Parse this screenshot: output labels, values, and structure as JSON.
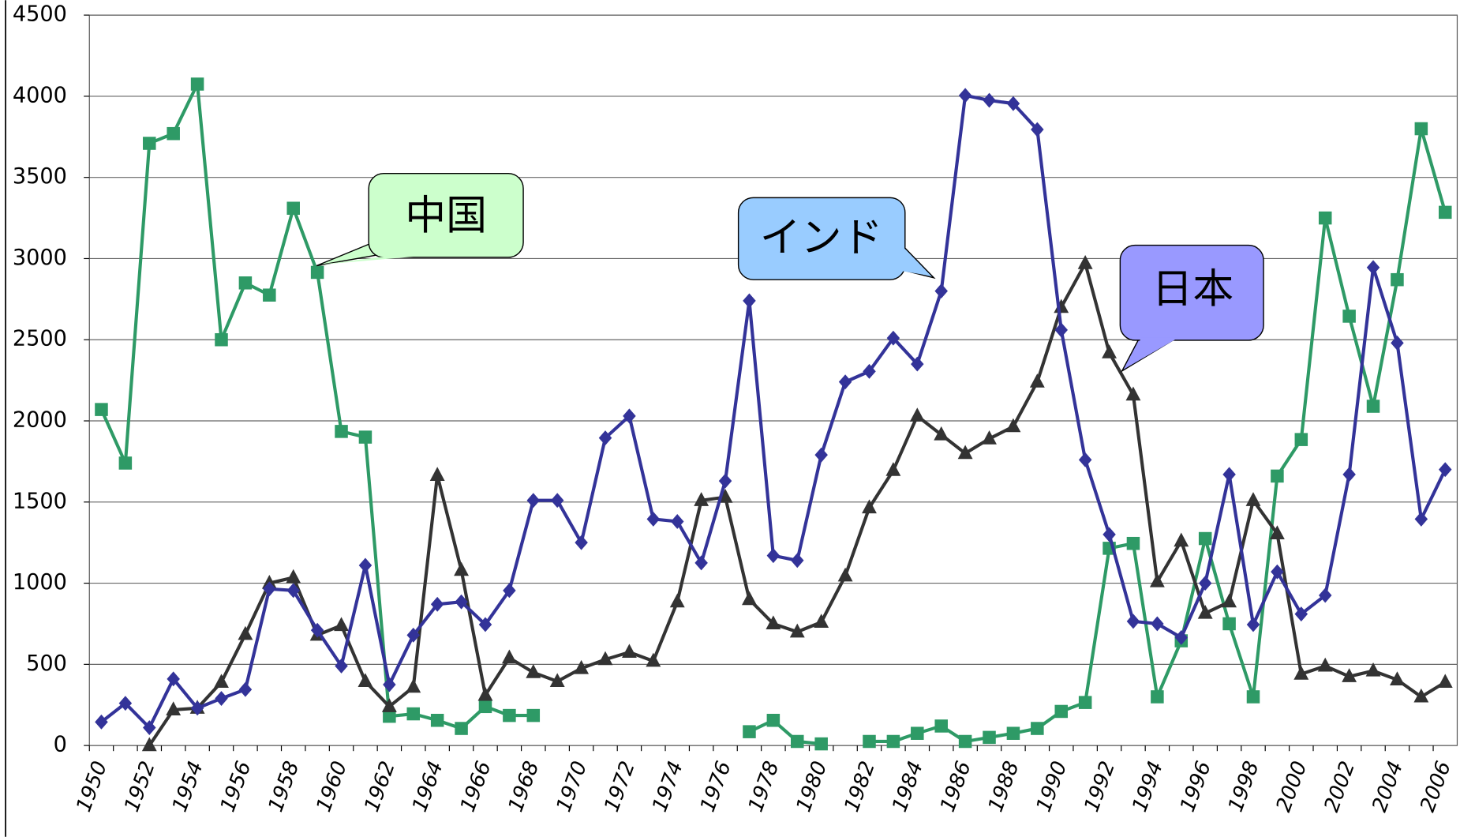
{
  "chart_data": {
    "type": "line",
    "categories": [
      "1950",
      null,
      "1952",
      null,
      "1954",
      null,
      "1956",
      null,
      "1958",
      null,
      "1960",
      null,
      "1962",
      null,
      "1964",
      null,
      "1966",
      null,
      "1968",
      null,
      "1970",
      null,
      "1972",
      null,
      "1974",
      null,
      "1976",
      null,
      "1978",
      null,
      "1980",
      null,
      "1982",
      null,
      "1984",
      null,
      "1986",
      null,
      "1988",
      null,
      "1990",
      null,
      "1992",
      null,
      "1994",
      null,
      "1996",
      null,
      "1998",
      null,
      "2000",
      null,
      "2002",
      null,
      "2004",
      null,
      "2006"
    ],
    "series": [
      {
        "name": "インド",
        "color": "#333399",
        "marker": "diamond",
        "values": [
          145,
          260,
          110,
          410,
          230,
          290,
          345,
          965,
          955,
          710,
          490,
          1110,
          375,
          680,
          870,
          885,
          745,
          955,
          1510,
          1510,
          1250,
          1895,
          2030,
          1395,
          1380,
          1125,
          1630,
          2740,
          1170,
          1140,
          1790,
          2240,
          2305,
          2510,
          2350,
          2800,
          4005,
          3975,
          3955,
          3795,
          2560,
          1760,
          1300,
          765,
          750,
          665,
          1000,
          1670,
          745,
          1070,
          810,
          925,
          1670,
          2945,
          2480,
          1395,
          1700
        ]
      },
      {
        "name": "中国",
        "color": "#2e9a66",
        "marker": "square",
        "values": [
          2070,
          1740,
          3710,
          3770,
          4075,
          2500,
          2850,
          2775,
          3310,
          2915,
          1935,
          1900,
          180,
          195,
          155,
          105,
          240,
          185,
          185,
          null,
          null,
          null,
          null,
          null,
          null,
          null,
          null,
          85,
          155,
          25,
          10,
          null,
          25,
          25,
          75,
          120,
          25,
          50,
          75,
          105,
          210,
          265,
          1215,
          1245,
          300,
          645,
          1275,
          750,
          300,
          1660,
          1885,
          3250,
          2645,
          2090,
          2870,
          3800,
          3285
        ]
      },
      {
        "name": "日本",
        "color": "#333333",
        "marker": "triangle",
        "values": [
          null,
          null,
          0,
          220,
          230,
          390,
          685,
          1000,
          1035,
          680,
          740,
          395,
          240,
          360,
          1665,
          1080,
          310,
          540,
          450,
          395,
          475,
          530,
          575,
          520,
          885,
          1510,
          1530,
          900,
          750,
          700,
          760,
          1045,
          1465,
          1695,
          2030,
          1915,
          1800,
          1890,
          1965,
          2240,
          2700,
          2970,
          2420,
          2160,
          1010,
          1260,
          815,
          885,
          1510,
          1305,
          440,
          490,
          425,
          460,
          405,
          300,
          390
        ]
      }
    ],
    "ylim": [
      0,
      4500
    ],
    "yticks": [
      0,
      500,
      1000,
      1500,
      2000,
      2500,
      3000,
      3500,
      4000,
      4500
    ],
    "grid": true
  }
}
